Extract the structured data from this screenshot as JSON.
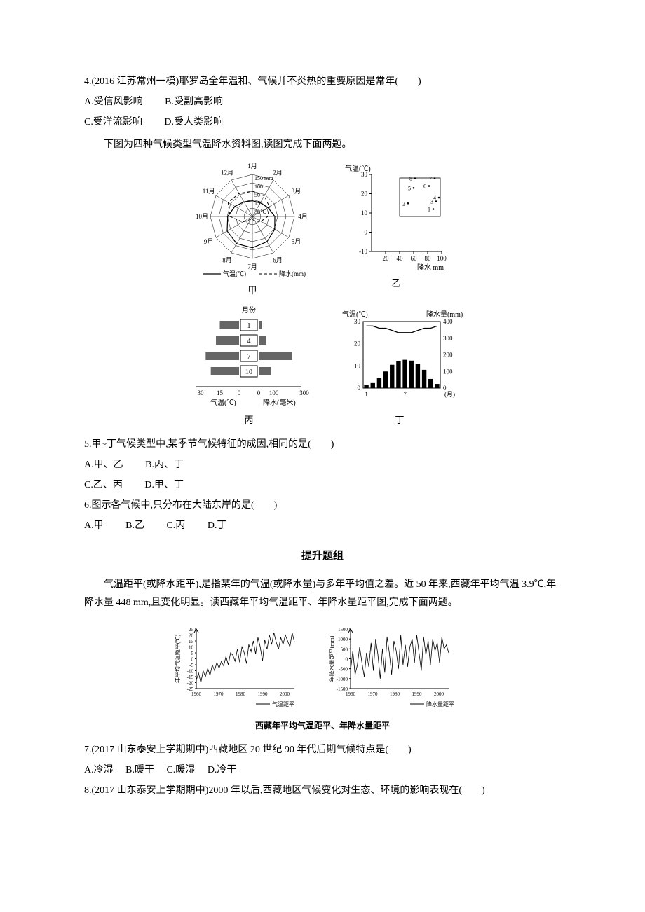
{
  "q4": {
    "text": "4.(2016 江苏常州一模)耶罗岛全年温和、气候并不炎热的重要原因是常年(　　)",
    "optA": "A.受信风影响",
    "optB": "B.受副高影响",
    "optC": "C.受洋流影响",
    "optD": "D.受人类影响"
  },
  "intro_q56": "下图为四种气候类型气温降水资料图,读图完成下面两题。",
  "diagram_jia": {
    "label": "甲",
    "legend_temp": "气温(℃)",
    "legend_precip": "降水(mm)",
    "center_rings": [
      "150 mm",
      "100",
      "50",
      "15",
      "30℃"
    ],
    "months": [
      "1月",
      "2月",
      "3月",
      "4月",
      "5月",
      "6月",
      "7月",
      "8月",
      "9月",
      "10月",
      "11月",
      "12月"
    ],
    "temp_values": [
      14,
      14,
      16,
      20,
      23,
      26,
      28,
      28,
      26,
      22,
      18,
      15
    ],
    "precip_values": [
      90,
      85,
      70,
      55,
      35,
      20,
      10,
      12,
      40,
      80,
      100,
      95
    ],
    "line_color_temp": "#000000",
    "line_color_precip": "#000000",
    "dash_precip": "4,3"
  },
  "diagram_yi": {
    "label": "乙",
    "xlabel": "降水 mm",
    "ylabel": "气温(℃)",
    "yticks": [
      -10,
      0,
      10,
      20,
      30
    ],
    "xticks": [
      20,
      40,
      60,
      80,
      100
    ],
    "points": [
      {
        "n": "1",
        "x": 88,
        "y": 12
      },
      {
        "n": "2",
        "x": 52,
        "y": 15
      },
      {
        "n": "3",
        "x": 92,
        "y": 16
      },
      {
        "n": "4",
        "x": 96,
        "y": 18
      },
      {
        "n": "5",
        "x": 60,
        "y": 23
      },
      {
        "n": "6",
        "x": 82,
        "y": 24
      },
      {
        "n": "7",
        "x": 90,
        "y": 28
      },
      {
        "n": "8",
        "x": 62,
        "y": 28
      }
    ],
    "marker_color": "#000000",
    "grid_color": "#000000"
  },
  "diagram_bing": {
    "label": "丙",
    "header_month": "月份",
    "months_shown": [
      "1",
      "4",
      "7",
      "10"
    ],
    "x_left_label": "气温(℃)",
    "x_right_label": "降水(毫米)",
    "x_left_ticks": [
      "30",
      "15",
      "0"
    ],
    "x_right_ticks": [
      "0",
      "100",
      "300"
    ],
    "temp_bars": [
      15,
      18,
      26,
      22
    ],
    "precip_bars": [
      20,
      50,
      220,
      80
    ],
    "bar_color": "#666666",
    "bg_color": "#ffffff"
  },
  "diagram_ding": {
    "label": "丁",
    "ylabel_left": "气温(℃)",
    "ylabel_right": "降水量(mm)",
    "yticks_left": [
      0,
      10,
      20,
      30
    ],
    "yticks_right": [
      0,
      100,
      200,
      300,
      400
    ],
    "xticks": [
      "1",
      "7",
      "(月)"
    ],
    "temp_line": [
      28,
      28,
      27,
      27,
      26,
      25,
      25,
      25,
      26,
      27,
      27,
      28
    ],
    "precip_bars": [
      20,
      30,
      60,
      100,
      140,
      160,
      170,
      165,
      145,
      110,
      55,
      25
    ],
    "bar_color": "#000000",
    "line_color": "#000000"
  },
  "q5": {
    "text": "5.甲~丁气候类型中,某季节气候特征的成因,相同的是(　　)",
    "optA": "A.甲、乙",
    "optB": "B.丙、丁",
    "optC": "C.乙、丙",
    "optD": "D.甲、丁"
  },
  "q6": {
    "text": "6.图示各气候中,只分布在大陆东岸的是(　　)",
    "optA": "A.甲",
    "optB": "B.乙",
    "optC": "C.丙",
    "optD": "D.丁"
  },
  "section_heading": "提升题组",
  "intro_q78": "气温距平(或降水距平),是指某年的气温(或降水量)与多年平均值之差。近 50 年来,西藏年平均气温 3.9℃,年降水量 448 mm,且变化明显。读西藏年平均气温距平、年降水量距平图,完成下面两题。",
  "dual_chart": {
    "title": "西藏年平均气温距平、年降水量距平",
    "left": {
      "ylabel": "年平均气温距平(℃)",
      "yticks": [
        -25,
        -20,
        -15,
        -10,
        -5,
        0,
        5,
        10,
        15,
        20,
        25
      ],
      "xticks": [
        1960,
        1970,
        1980,
        1990,
        2000
      ],
      "legend": "气温距平",
      "series_color": "#000000",
      "values": [
        -18,
        -12,
        -20,
        -10,
        -15,
        -8,
        -14,
        -5,
        -10,
        -3,
        -8,
        -2,
        -6,
        2,
        -5,
        5,
        3,
        -2,
        8,
        -3,
        10,
        5,
        -4,
        12,
        6,
        15,
        4,
        18,
        10,
        -2,
        16,
        8,
        20,
        12,
        22,
        14,
        8,
        18,
        12,
        20,
        15,
        10,
        22,
        14
      ]
    },
    "right": {
      "ylabel": "年降水量距平(mm)",
      "yticks": [
        -1500,
        -1000,
        -500,
        0,
        500,
        1000,
        1500
      ],
      "xticks": [
        1960,
        1970,
        1980,
        1990,
        2000
      ],
      "legend": "降水量距平",
      "series_color": "#000000",
      "values": [
        -600,
        400,
        -800,
        -300,
        600,
        -200,
        -900,
        300,
        -400,
        800,
        -600,
        1000,
        200,
        -1000,
        500,
        -700,
        1100,
        300,
        -800,
        900,
        400,
        -500,
        1200,
        -300,
        700,
        -400,
        600,
        1000,
        -200,
        1200,
        300,
        -600,
        1100,
        200,
        900,
        -300,
        1000,
        400,
        800,
        -200,
        1100,
        500,
        700,
        300
      ]
    }
  },
  "q7": {
    "text": "7.(2017 山东泰安上学期期中)西藏地区 20 世纪 90 年代后期气候特点是(　　)",
    "optA": "A.冷湿",
    "optB": "B.暖干",
    "optC": "C.暖湿",
    "optD": "D.冷干"
  },
  "q8": {
    "text": "8.(2017 山东泰安上学期期中)2000 年以后,西藏地区气候变化对生态、环境的影响表现在(　　)"
  }
}
